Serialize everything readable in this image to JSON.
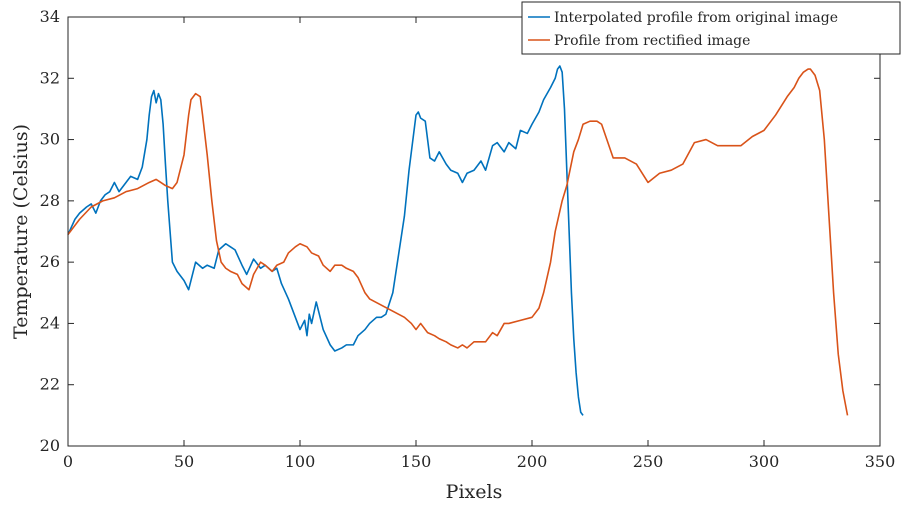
{
  "chart_data": {
    "type": "line",
    "xlabel": "Pixels",
    "ylabel": "Temperature (Celsius)",
    "xlim": [
      0,
      350
    ],
    "ylim": [
      20,
      34
    ],
    "xticks": [
      0,
      50,
      100,
      150,
      200,
      250,
      300,
      350
    ],
    "yticks": [
      20,
      22,
      24,
      26,
      28,
      30,
      32,
      34
    ],
    "grid": false,
    "legend_position": "top-right",
    "series": [
      {
        "name": "Interpolated profile from original image",
        "color": "#0072BD",
        "x": [
          0,
          3,
          5,
          8,
          10,
          12,
          14,
          16,
          18,
          20,
          22,
          25,
          27,
          30,
          32,
          34,
          35,
          36,
          37,
          38,
          39,
          40,
          41,
          42,
          43,
          44,
          45,
          47,
          50,
          52,
          55,
          58,
          60,
          63,
          65,
          68,
          70,
          72,
          75,
          77,
          80,
          83,
          85,
          88,
          90,
          92,
          95,
          98,
          100,
          102,
          103,
          104,
          105,
          107,
          110,
          113,
          115,
          118,
          120,
          123,
          125,
          128,
          130,
          133,
          135,
          137,
          140,
          142,
          145,
          147,
          149,
          150,
          151,
          152,
          154,
          156,
          158,
          160,
          163,
          165,
          168,
          170,
          172,
          175,
          178,
          180,
          183,
          185,
          188,
          190,
          193,
          195,
          198,
          200,
          203,
          205,
          208,
          210,
          211,
          212,
          213,
          214,
          215,
          216,
          217,
          218,
          219,
          220,
          221,
          222
        ],
        "y": [
          26.9,
          27.4,
          27.6,
          27.8,
          27.9,
          27.6,
          28.0,
          28.2,
          28.3,
          28.6,
          28.3,
          28.6,
          28.8,
          28.7,
          29.1,
          30.0,
          30.8,
          31.4,
          31.6,
          31.2,
          31.5,
          31.3,
          30.5,
          29.2,
          28.0,
          27.0,
          26.0,
          25.7,
          25.4,
          25.1,
          26.0,
          25.8,
          25.9,
          25.8,
          26.4,
          26.6,
          26.5,
          26.4,
          25.9,
          25.6,
          26.1,
          25.8,
          25.9,
          25.7,
          25.8,
          25.3,
          24.8,
          24.2,
          23.8,
          24.1,
          23.6,
          24.3,
          24.0,
          24.7,
          23.8,
          23.3,
          23.1,
          23.2,
          23.3,
          23.3,
          23.6,
          23.8,
          24.0,
          24.2,
          24.2,
          24.3,
          25.0,
          26.0,
          27.5,
          29.0,
          30.2,
          30.8,
          30.9,
          30.7,
          30.6,
          29.4,
          29.3,
          29.6,
          29.2,
          29.0,
          28.9,
          28.6,
          28.9,
          29.0,
          29.3,
          29.0,
          29.8,
          29.9,
          29.6,
          29.9,
          29.7,
          30.3,
          30.2,
          30.5,
          30.9,
          31.3,
          31.7,
          32.0,
          32.3,
          32.4,
          32.2,
          31.0,
          29.0,
          27.0,
          25.0,
          23.5,
          22.4,
          21.6,
          21.1,
          21.0
        ]
      },
      {
        "name": "Profile from rectified image",
        "color": "#D95319",
        "x": [
          0,
          5,
          10,
          15,
          20,
          25,
          30,
          35,
          38,
          40,
          42,
          45,
          47,
          50,
          52,
          53,
          55,
          57,
          58,
          60,
          62,
          64,
          66,
          68,
          70,
          73,
          75,
          78,
          80,
          83,
          85,
          88,
          90,
          93,
          95,
          98,
          100,
          103,
          105,
          108,
          110,
          113,
          115,
          118,
          120,
          123,
          125,
          128,
          130,
          135,
          140,
          145,
          148,
          150,
          152,
          155,
          158,
          160,
          163,
          165,
          168,
          170,
          172,
          175,
          178,
          180,
          183,
          185,
          188,
          190,
          195,
          200,
          203,
          205,
          208,
          210,
          213,
          215,
          218,
          220,
          222,
          225,
          228,
          230,
          235,
          240,
          245,
          250,
          255,
          260,
          265,
          270,
          275,
          280,
          285,
          290,
          295,
          300,
          305,
          310,
          313,
          315,
          317,
          319,
          320,
          322,
          324,
          326,
          328,
          330,
          332,
          334,
          336
        ],
        "y": [
          26.9,
          27.4,
          27.8,
          28.0,
          28.1,
          28.3,
          28.4,
          28.6,
          28.7,
          28.6,
          28.5,
          28.4,
          28.6,
          29.5,
          30.8,
          31.3,
          31.5,
          31.4,
          30.8,
          29.5,
          28.0,
          26.7,
          26.0,
          25.8,
          25.7,
          25.6,
          25.3,
          25.1,
          25.6,
          26.0,
          25.9,
          25.7,
          25.9,
          26.0,
          26.3,
          26.5,
          26.6,
          26.5,
          26.3,
          26.2,
          25.9,
          25.7,
          25.9,
          25.9,
          25.8,
          25.7,
          25.5,
          25.0,
          24.8,
          24.6,
          24.4,
          24.2,
          24.0,
          23.8,
          24.0,
          23.7,
          23.6,
          23.5,
          23.4,
          23.3,
          23.2,
          23.3,
          23.2,
          23.4,
          23.4,
          23.4,
          23.7,
          23.6,
          24.0,
          24.0,
          24.1,
          24.2,
          24.5,
          25.0,
          26.0,
          27.0,
          28.0,
          28.5,
          29.6,
          30.0,
          30.5,
          30.6,
          30.6,
          30.5,
          29.4,
          29.4,
          29.2,
          28.6,
          28.9,
          29.0,
          29.2,
          29.9,
          30.0,
          29.8,
          29.8,
          29.8,
          30.1,
          30.3,
          30.8,
          31.4,
          31.7,
          32.0,
          32.2,
          32.3,
          32.3,
          32.1,
          31.6,
          30.0,
          27.5,
          25.0,
          23.0,
          21.8,
          21.0
        ]
      }
    ]
  }
}
